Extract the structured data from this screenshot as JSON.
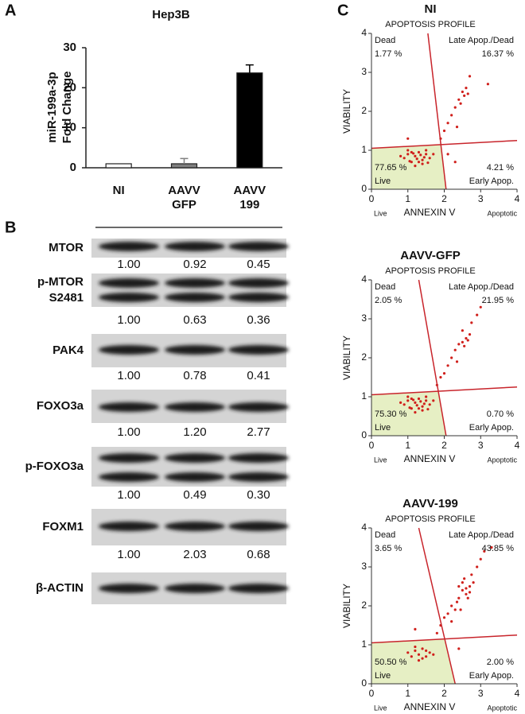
{
  "panels": [
    "A",
    "B",
    "C"
  ],
  "chart_data": [
    {
      "type": "bar",
      "title": "Hep3B",
      "ylabel": [
        "miR-199a-3p",
        "Fold Change"
      ],
      "categories": [
        [
          "NI"
        ],
        [
          "AAVV",
          "GFP"
        ],
        [
          "AAVV",
          "199"
        ]
      ],
      "values": [
        1,
        1,
        23.7
      ],
      "errors": [
        null,
        1.3,
        2.0
      ],
      "colors": [
        "#ffffff",
        "#808080",
        "#000000"
      ],
      "ylim": [
        0,
        30
      ],
      "yticks": [
        0,
        10,
        20,
        30
      ]
    },
    {
      "type": "scatter",
      "title": "NI",
      "subtitle": "APOPTOSIS PROFILE",
      "xlabel": "ANNEXIN V",
      "ylabel": "VIABILITY",
      "x_end_labels": [
        "Live",
        "Apoptotic"
      ],
      "xlim": [
        0,
        4
      ],
      "ylim": [
        0,
        4
      ],
      "xticks": [
        0,
        1,
        2,
        3,
        4
      ],
      "yticks": [
        0,
        1,
        2,
        3,
        4
      ],
      "quadrants": {
        "names": [
          "Dead",
          "Late Apop./Dead",
          "Live",
          "Early Apop."
        ],
        "values": [
          1.77,
          16.37,
          77.65,
          4.21
        ],
        "value_labels": [
          "1.77 %",
          "16.37 %",
          "77.65 %",
          "4.21 %"
        ]
      },
      "gates": {
        "vertical": [
          [
            1.55,
            4
          ],
          [
            2.05,
            0
          ]
        ],
        "horizontal": [
          [
            0,
            1.05
          ],
          [
            4,
            1.25
          ]
        ]
      },
      "gate_color": "#c8242b",
      "live_fill": "#e6efc4",
      "color": "#d0201c",
      "x": [
        0.9,
        1.0,
        1.1,
        1.2,
        1.3,
        1.4,
        1.5,
        1.6,
        1.0,
        1.2,
        1.4,
        1.1,
        1.3,
        1.5,
        0.8,
        1.7,
        1.25,
        1.35,
        1.05,
        1.45,
        1.15,
        1.55,
        1.9,
        2.0,
        2.1,
        2.2,
        2.3,
        2.4,
        2.5,
        2.55,
        2.6,
        2.7,
        2.45,
        2.35,
        2.65,
        3.2,
        2.1,
        2.3,
        1.0
      ],
      "y": [
        0.8,
        0.9,
        0.7,
        0.85,
        0.95,
        0.75,
        0.9,
        0.8,
        1.0,
        0.6,
        0.65,
        0.95,
        0.7,
        1.0,
        0.85,
        0.9,
        0.78,
        0.88,
        0.72,
        0.82,
        0.92,
        0.68,
        1.3,
        1.5,
        1.7,
        1.9,
        2.1,
        2.3,
        2.5,
        2.4,
        2.6,
        2.9,
        2.2,
        1.6,
        2.45,
        2.7,
        0.9,
        0.7,
        1.3
      ]
    },
    {
      "type": "scatter",
      "title": "AAVV-GFP",
      "subtitle": "APOPTOSIS PROFILE",
      "xlabel": "ANNEXIN V",
      "ylabel": "VIABILITY",
      "x_end_labels": [
        "Live",
        "Apoptotic"
      ],
      "xlim": [
        0,
        4
      ],
      "ylim": [
        0,
        4
      ],
      "xticks": [
        0,
        1,
        2,
        3,
        4
      ],
      "yticks": [
        0,
        1,
        2,
        3,
        4
      ],
      "quadrants": {
        "names": [
          "Dead",
          "Late Apop./Dead",
          "Live",
          "Early Apop."
        ],
        "values": [
          2.05,
          21.95,
          75.3,
          0.7
        ],
        "value_labels": [
          "2.05 %",
          "21.95 %",
          "75.30 %",
          "0.70 %"
        ]
      },
      "gates": {
        "vertical": [
          [
            1.3,
            4
          ],
          [
            2.05,
            0
          ]
        ],
        "horizontal": [
          [
            0,
            1.05
          ],
          [
            4,
            1.25
          ]
        ]
      },
      "gate_color": "#c8242b",
      "live_fill": "#e6efc4",
      "color": "#d0201c",
      "x": [
        0.9,
        1.0,
        1.1,
        1.2,
        1.3,
        1.4,
        1.5,
        1.6,
        1.0,
        1.2,
        1.4,
        1.1,
        1.3,
        1.5,
        0.8,
        1.7,
        1.25,
        1.35,
        1.05,
        1.45,
        1.15,
        1.55,
        1.8,
        1.9,
        2.0,
        2.1,
        2.2,
        2.3,
        2.4,
        2.5,
        2.55,
        2.6,
        2.7,
        2.65,
        2.5,
        2.75,
        2.9,
        3.0,
        2.35
      ],
      "y": [
        0.8,
        0.9,
        0.7,
        0.85,
        0.95,
        0.75,
        0.9,
        0.8,
        1.0,
        0.6,
        0.65,
        0.95,
        0.7,
        1.0,
        0.85,
        0.9,
        0.78,
        0.88,
        0.72,
        0.82,
        0.92,
        0.68,
        1.3,
        1.5,
        1.6,
        1.8,
        2.0,
        2.2,
        2.35,
        2.4,
        2.3,
        2.5,
        2.6,
        2.45,
        2.7,
        2.9,
        3.1,
        3.3,
        1.9
      ]
    },
    {
      "type": "scatter",
      "title": "AAVV-199",
      "subtitle": "APOPTOSIS PROFILE",
      "xlabel": "ANNEXIN V",
      "ylabel": "VIABILITY",
      "x_end_labels": [
        "Live",
        "Apoptotic"
      ],
      "xlim": [
        0,
        4
      ],
      "ylim": [
        0,
        4
      ],
      "xticks": [
        0,
        1,
        2,
        3,
        4
      ],
      "yticks": [
        0,
        1,
        2,
        3,
        4
      ],
      "quadrants": {
        "names": [
          "Dead",
          "Late Apop./Dead",
          "Live",
          "Early Apop."
        ],
        "values": [
          3.65,
          43.85,
          50.5,
          2.0
        ],
        "value_labels": [
          "3.65 %",
          "43.85 %",
          "50.50 %",
          "2.00 %"
        ]
      },
      "gates": {
        "vertical": [
          [
            1.3,
            4
          ],
          [
            2.3,
            0
          ]
        ],
        "horizontal": [
          [
            0,
            1.05
          ],
          [
            4,
            1.25
          ]
        ]
      },
      "gate_color": "#c8242b",
      "live_fill": "#e6efc4",
      "color": "#d0201c",
      "x": [
        1.0,
        1.1,
        1.2,
        1.3,
        1.4,
        1.5,
        1.6,
        1.7,
        1.2,
        1.4,
        1.3,
        1.5,
        1.8,
        1.9,
        2.0,
        2.1,
        2.2,
        2.3,
        2.4,
        2.5,
        2.6,
        2.7,
        2.5,
        2.6,
        2.7,
        2.8,
        2.4,
        2.55,
        2.65,
        2.75,
        2.9,
        3.0,
        3.1,
        2.2,
        2.35,
        2.45,
        3.3,
        1.2,
        2.4
      ],
      "y": [
        0.8,
        0.7,
        0.85,
        0.75,
        0.9,
        0.7,
        0.8,
        0.75,
        0.95,
        0.65,
        0.6,
        0.85,
        1.3,
        1.5,
        1.7,
        1.8,
        2.0,
        1.9,
        2.2,
        2.4,
        2.3,
        2.5,
        2.6,
        2.45,
        2.35,
        2.6,
        2.5,
        2.7,
        2.2,
        2.8,
        3.0,
        3.2,
        3.4,
        1.6,
        2.1,
        1.9,
        3.5,
        1.4,
        0.9
      ]
    }
  ],
  "blot": {
    "rows": [
      {
        "label": [
          "MTOR"
        ],
        "quant": [
          "1.00",
          "0.92",
          "0.45"
        ]
      },
      {
        "label": [
          "p-MTOR",
          "S2481"
        ],
        "quant": [
          "1.00",
          "0.63",
          "0.36"
        ]
      },
      {
        "label": [
          "PAK4"
        ],
        "quant": [
          "1.00",
          "0.78",
          "0.41"
        ]
      },
      {
        "label": [
          "FOXO3a"
        ],
        "quant": [
          "1.00",
          "1.20",
          "2.77"
        ]
      },
      {
        "label": [
          "p-FOXO3a"
        ],
        "quant": [
          "1.00",
          "0.49",
          "0.30"
        ]
      },
      {
        "label": [
          "FOXM1"
        ],
        "quant": [
          "1.00",
          "2.03",
          "0.68"
        ]
      },
      {
        "label": [
          "β-ACTIN"
        ],
        "quant": []
      }
    ]
  }
}
